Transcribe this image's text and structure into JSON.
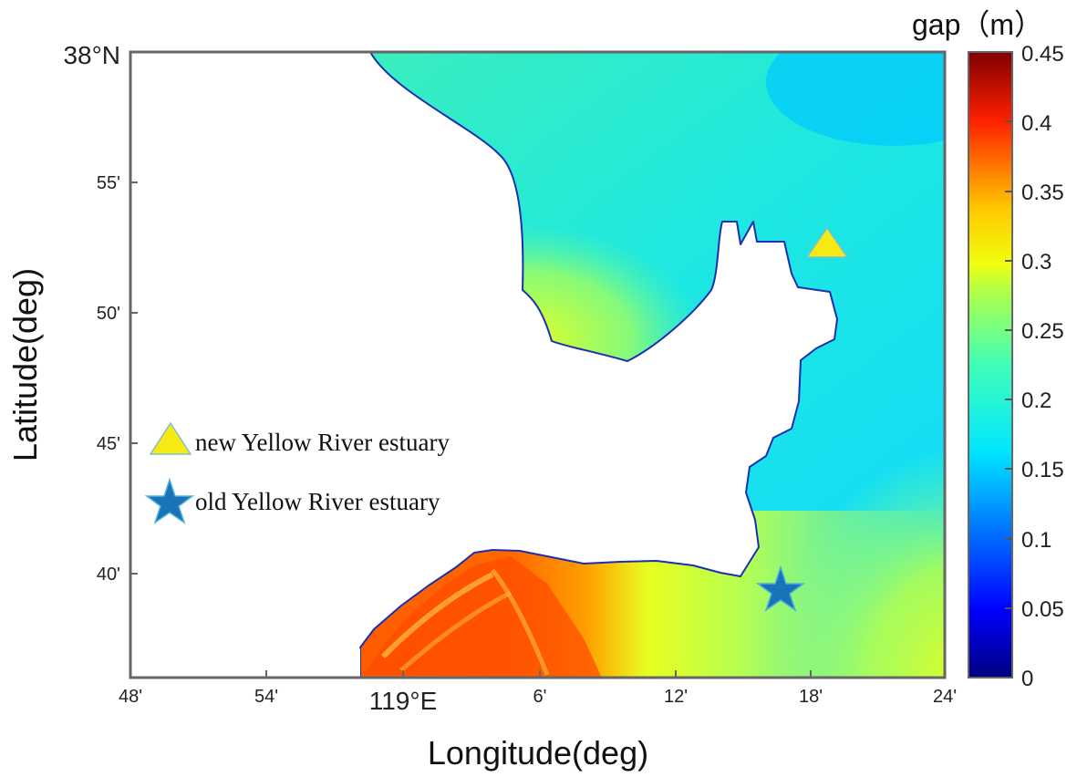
{
  "map": {
    "x_axis_label": "Longitude(deg)",
    "y_axis_label": "Latitude(deg)",
    "x_ticks": [
      "48'",
      "54'",
      "119°E",
      "6'",
      "12'",
      "18'",
      "24'"
    ],
    "y_ticks": [
      "38°N",
      "55'",
      "50'",
      "45'",
      "40'"
    ],
    "legend": {
      "new_estuary_label": "new Yellow River estuary",
      "old_estuary_label": "old Yellow River estuary",
      "triangle_color": "#f5ea12",
      "star_color": "#1a73b8"
    },
    "colorbar": {
      "title": "gap（m）",
      "ticks": [
        "0.45",
        "0.4",
        "0.35",
        "0.3",
        "0.25",
        "0.2",
        "0.15",
        "0.1",
        "0.05",
        "0"
      ],
      "colormap": "jet"
    }
  }
}
